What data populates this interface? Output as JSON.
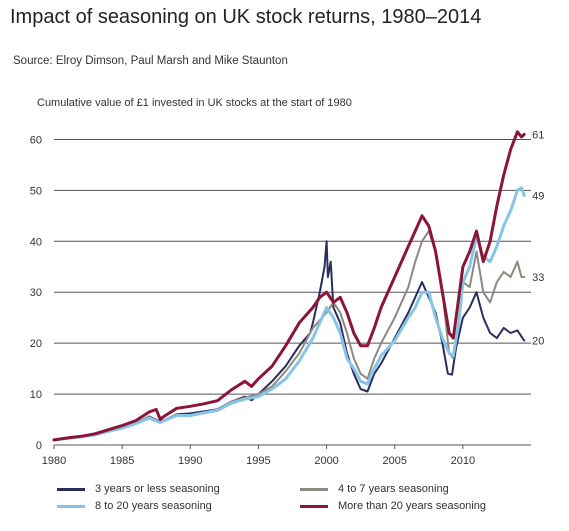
{
  "title": "Impact of seasoning on UK stock returns, 1980–2014",
  "source": "Source: Elroy Dimson, Paul Marsh and Mike Staunton",
  "chart_data": {
    "type": "line",
    "title": "Impact of seasoning on UK stock returns, 1980–2014",
    "subtitle": "Cumulative value of £1 invested in UK stocks at the start of 1980",
    "xlabel": "",
    "ylabel": "",
    "xlim": [
      1980,
      2015
    ],
    "ylim": [
      0,
      65
    ],
    "x_ticks": [
      1980,
      1985,
      1990,
      1995,
      2000,
      2005,
      2010
    ],
    "y_ticks": [
      0,
      10,
      20,
      30,
      40,
      50,
      60
    ],
    "grid": "horizontal",
    "legend_position": "bottom",
    "series": [
      {
        "name": "3 years or less seasoning",
        "color": "#2b2d5c",
        "end_label": "20",
        "points": [
          [
            1980,
            1
          ],
          [
            1981,
            1.3
          ],
          [
            1982,
            1.6
          ],
          [
            1983,
            2.1
          ],
          [
            1984,
            2.8
          ],
          [
            1985,
            3.5
          ],
          [
            1986,
            4.3
          ],
          [
            1987,
            5.6
          ],
          [
            1987.8,
            4.6
          ],
          [
            1988,
            4.8
          ],
          [
            1989,
            6.0
          ],
          [
            1990,
            6.2
          ],
          [
            1991,
            6.6
          ],
          [
            1992,
            7.0
          ],
          [
            1993,
            8.5
          ],
          [
            1994,
            9.5
          ],
          [
            1994.5,
            8.8
          ],
          [
            1995,
            10.0
          ],
          [
            1996,
            12.5
          ],
          [
            1997,
            15.5
          ],
          [
            1998,
            19.5
          ],
          [
            1998.8,
            22
          ],
          [
            1999,
            24
          ],
          [
            1999.5,
            30
          ],
          [
            1999.85,
            35
          ],
          [
            2000,
            40
          ],
          [
            2000.1,
            33
          ],
          [
            2000.3,
            36
          ],
          [
            2000.5,
            27
          ],
          [
            2001,
            24
          ],
          [
            2001.5,
            18
          ],
          [
            2002,
            14
          ],
          [
            2002.5,
            11
          ],
          [
            2003,
            10.5
          ],
          [
            2003.5,
            14
          ],
          [
            2004,
            16
          ],
          [
            2004.5,
            18.5
          ],
          [
            2005,
            21
          ],
          [
            2006,
            26
          ],
          [
            2006.5,
            29
          ],
          [
            2007,
            32
          ],
          [
            2007.5,
            29
          ],
          [
            2008,
            26
          ],
          [
            2008.5,
            20
          ],
          [
            2008.9,
            14
          ],
          [
            2009.2,
            13.8
          ],
          [
            2009.5,
            19
          ],
          [
            2010,
            25
          ],
          [
            2010.5,
            27
          ],
          [
            2011,
            30
          ],
          [
            2011.5,
            25
          ],
          [
            2012,
            22
          ],
          [
            2012.5,
            21
          ],
          [
            2013,
            23
          ],
          [
            2013.5,
            22
          ],
          [
            2014,
            22.5
          ],
          [
            2014.5,
            20.5
          ]
        ]
      },
      {
        "name": "4 to 7 years seasoning",
        "color": "#8e8880",
        "end_label": "33",
        "points": [
          [
            1980,
            1
          ],
          [
            1981,
            1.3
          ],
          [
            1982,
            1.6
          ],
          [
            1983,
            2.0
          ],
          [
            1984,
            2.7
          ],
          [
            1985,
            3.4
          ],
          [
            1986,
            4.3
          ],
          [
            1987,
            5.5
          ],
          [
            1987.8,
            4.5
          ],
          [
            1988,
            4.8
          ],
          [
            1989,
            5.9
          ],
          [
            1990,
            5.8
          ],
          [
            1991,
            6.4
          ],
          [
            1992,
            6.9
          ],
          [
            1993,
            8.5
          ],
          [
            1994,
            9.3
          ],
          [
            1995,
            10.0
          ],
          [
            1996,
            11.5
          ],
          [
            1997,
            14.5
          ],
          [
            1998,
            18
          ],
          [
            1999,
            23
          ],
          [
            2000,
            26
          ],
          [
            2000.5,
            28
          ],
          [
            2001,
            26
          ],
          [
            2001.5,
            22
          ],
          [
            2002,
            17
          ],
          [
            2002.5,
            14
          ],
          [
            2003,
            13
          ],
          [
            2003.5,
            17
          ],
          [
            2004,
            20
          ],
          [
            2005,
            25
          ],
          [
            2006,
            31
          ],
          [
            2006.5,
            36
          ],
          [
            2007,
            40
          ],
          [
            2007.5,
            42
          ],
          [
            2008,
            38
          ],
          [
            2008.5,
            30
          ],
          [
            2009,
            18
          ],
          [
            2009.3,
            17
          ],
          [
            2009.7,
            24
          ],
          [
            2010,
            32
          ],
          [
            2010.5,
            31
          ],
          [
            2011,
            38
          ],
          [
            2011.5,
            30
          ],
          [
            2012,
            28
          ],
          [
            2012.5,
            32
          ],
          [
            2013,
            34
          ],
          [
            2013.5,
            33
          ],
          [
            2014,
            36
          ],
          [
            2014.3,
            33
          ],
          [
            2014.5,
            33
          ]
        ]
      },
      {
        "name": "8 to 20 years seasoning",
        "color": "#86c4e8",
        "end_label": "49",
        "points": [
          [
            1980,
            1
          ],
          [
            1981,
            1.3
          ],
          [
            1982,
            1.6
          ],
          [
            1983,
            2.0
          ],
          [
            1984,
            2.7
          ],
          [
            1985,
            3.3
          ],
          [
            1986,
            4.2
          ],
          [
            1987,
            5.3
          ],
          [
            1987.8,
            4.4
          ],
          [
            1988,
            4.7
          ],
          [
            1989,
            5.8
          ],
          [
            1990,
            5.8
          ],
          [
            1991,
            6.3
          ],
          [
            1992,
            6.8
          ],
          [
            1993,
            8.2
          ],
          [
            1994,
            9.0
          ],
          [
            1995,
            9.5
          ],
          [
            1996,
            11
          ],
          [
            1997,
            13
          ],
          [
            1998,
            16.5
          ],
          [
            1999,
            21
          ],
          [
            1999.5,
            24
          ],
          [
            2000,
            27
          ],
          [
            2000.5,
            25
          ],
          [
            2001,
            22
          ],
          [
            2001.5,
            17
          ],
          [
            2002,
            15
          ],
          [
            2002.5,
            12.5
          ],
          [
            2003,
            12
          ],
          [
            2003.5,
            15
          ],
          [
            2004,
            17.5
          ],
          [
            2005,
            20.5
          ],
          [
            2006,
            25
          ],
          [
            2006.5,
            27
          ],
          [
            2007,
            30
          ],
          [
            2007.5,
            30
          ],
          [
            2008,
            25
          ],
          [
            2008.5,
            21
          ],
          [
            2009,
            18
          ],
          [
            2009.3,
            17.5
          ],
          [
            2009.7,
            24
          ],
          [
            2010,
            32
          ],
          [
            2010.5,
            35
          ],
          [
            2011,
            41
          ],
          [
            2011.5,
            37
          ],
          [
            2012,
            36
          ],
          [
            2012.5,
            39
          ],
          [
            2013,
            43
          ],
          [
            2013.5,
            46
          ],
          [
            2014,
            50
          ],
          [
            2014.3,
            50.5
          ],
          [
            2014.5,
            49
          ]
        ]
      },
      {
        "name": "More than 20 years seasoning",
        "color": "#8b1538",
        "end_label": "61",
        "points": [
          [
            1980,
            1
          ],
          [
            1981,
            1.4
          ],
          [
            1982,
            1.7
          ],
          [
            1983,
            2.2
          ],
          [
            1984,
            3.0
          ],
          [
            1985,
            3.8
          ],
          [
            1986,
            4.8
          ],
          [
            1987,
            6.5
          ],
          [
            1987.5,
            7
          ],
          [
            1987.8,
            5.0
          ],
          [
            1988,
            5.5
          ],
          [
            1989,
            7.2
          ],
          [
            1990,
            7.6
          ],
          [
            1991,
            8.1
          ],
          [
            1992,
            8.7
          ],
          [
            1993,
            10.8
          ],
          [
            1994,
            12.5
          ],
          [
            1994.5,
            11.5
          ],
          [
            1995,
            13
          ],
          [
            1996,
            15.5
          ],
          [
            1997,
            19.5
          ],
          [
            1998,
            24
          ],
          [
            1999,
            27
          ],
          [
            1999.5,
            29
          ],
          [
            2000,
            30
          ],
          [
            2000.5,
            28
          ],
          [
            2001,
            29
          ],
          [
            2001.5,
            26
          ],
          [
            2002,
            22
          ],
          [
            2002.5,
            19.5
          ],
          [
            2003,
            19.5
          ],
          [
            2003.5,
            23
          ],
          [
            2004,
            27
          ],
          [
            2005,
            33
          ],
          [
            2006,
            39
          ],
          [
            2006.5,
            42
          ],
          [
            2007,
            45
          ],
          [
            2007.5,
            43
          ],
          [
            2008,
            38
          ],
          [
            2008.5,
            30
          ],
          [
            2009,
            22
          ],
          [
            2009.3,
            21
          ],
          [
            2009.7,
            29
          ],
          [
            2010,
            35
          ],
          [
            2010.5,
            38
          ],
          [
            2011,
            42
          ],
          [
            2011.5,
            36
          ],
          [
            2012,
            40
          ],
          [
            2012.5,
            47
          ],
          [
            2013,
            53
          ],
          [
            2013.5,
            58
          ],
          [
            2014,
            61.5
          ],
          [
            2014.3,
            60.5
          ],
          [
            2014.5,
            61
          ]
        ]
      }
    ]
  }
}
